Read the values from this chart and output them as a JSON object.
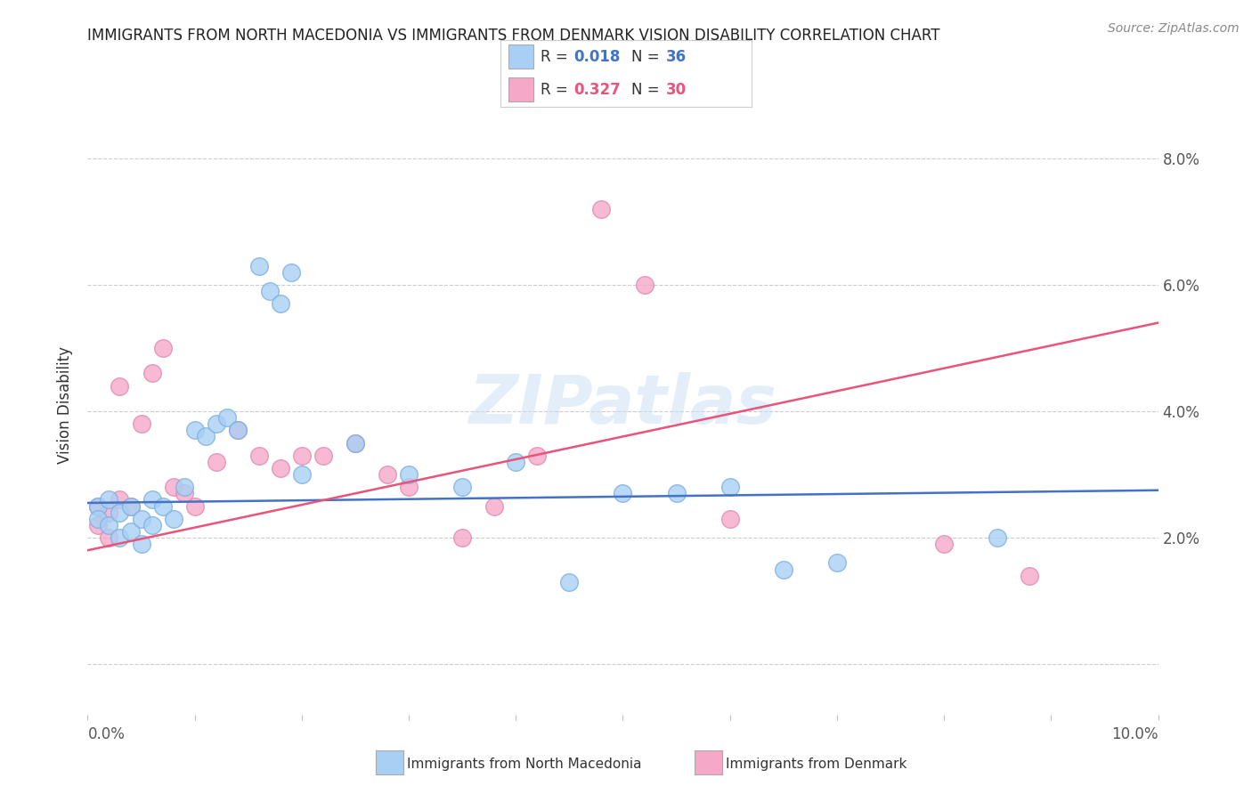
{
  "title": "IMMIGRANTS FROM NORTH MACEDONIA VS IMMIGRANTS FROM DENMARK VISION DISABILITY CORRELATION CHART",
  "source": "Source: ZipAtlas.com",
  "ylabel": "Vision Disability",
  "xlim": [
    0.0,
    0.1
  ],
  "ylim": [
    -0.008,
    0.09
  ],
  "yticks": [
    0.0,
    0.02,
    0.04,
    0.06,
    0.08
  ],
  "ytick_labels": [
    "",
    "2.0%",
    "4.0%",
    "6.0%",
    "8.0%"
  ],
  "watermark": "ZIPatlas",
  "blue_R": "0.018",
  "blue_N": "36",
  "pink_R": "0.327",
  "pink_N": "30",
  "blue_color": "#A8D0F5",
  "pink_color": "#F5A8C8",
  "blue_line_color": "#4472C4",
  "pink_line_color": "#E8547A",
  "legend_blue_label": "Immigrants from North Macedonia",
  "legend_pink_label": "Immigrants from Denmark",
  "blue_x": [
    0.001,
    0.001,
    0.002,
    0.002,
    0.003,
    0.003,
    0.004,
    0.004,
    0.005,
    0.005,
    0.006,
    0.006,
    0.007,
    0.008,
    0.009,
    0.01,
    0.011,
    0.012,
    0.013,
    0.014,
    0.016,
    0.017,
    0.018,
    0.019,
    0.02,
    0.025,
    0.03,
    0.035,
    0.04,
    0.05,
    0.06,
    0.065,
    0.07,
    0.085,
    0.055,
    0.045
  ],
  "blue_y": [
    0.025,
    0.023,
    0.026,
    0.022,
    0.024,
    0.02,
    0.025,
    0.021,
    0.023,
    0.019,
    0.026,
    0.022,
    0.025,
    0.023,
    0.028,
    0.037,
    0.036,
    0.038,
    0.039,
    0.037,
    0.063,
    0.059,
    0.057,
    0.062,
    0.03,
    0.035,
    0.03,
    0.028,
    0.032,
    0.027,
    0.028,
    0.015,
    0.016,
    0.02,
    0.027,
    0.013
  ],
  "pink_x": [
    0.001,
    0.001,
    0.002,
    0.002,
    0.003,
    0.003,
    0.004,
    0.005,
    0.006,
    0.007,
    0.008,
    0.009,
    0.01,
    0.012,
    0.014,
    0.016,
    0.018,
    0.02,
    0.022,
    0.025,
    0.028,
    0.03,
    0.035,
    0.038,
    0.042,
    0.048,
    0.052,
    0.06,
    0.08,
    0.088
  ],
  "pink_y": [
    0.025,
    0.022,
    0.024,
    0.02,
    0.044,
    0.026,
    0.025,
    0.038,
    0.046,
    0.05,
    0.028,
    0.027,
    0.025,
    0.032,
    0.037,
    0.033,
    0.031,
    0.033,
    0.033,
    0.035,
    0.03,
    0.028,
    0.02,
    0.025,
    0.033,
    0.072,
    0.06,
    0.023,
    0.019,
    0.014
  ],
  "blue_trend_x": [
    0.0,
    0.1
  ],
  "blue_trend_y": [
    0.0255,
    0.0275
  ],
  "pink_trend_x": [
    0.0,
    0.1
  ],
  "pink_trend_y": [
    0.018,
    0.054
  ]
}
